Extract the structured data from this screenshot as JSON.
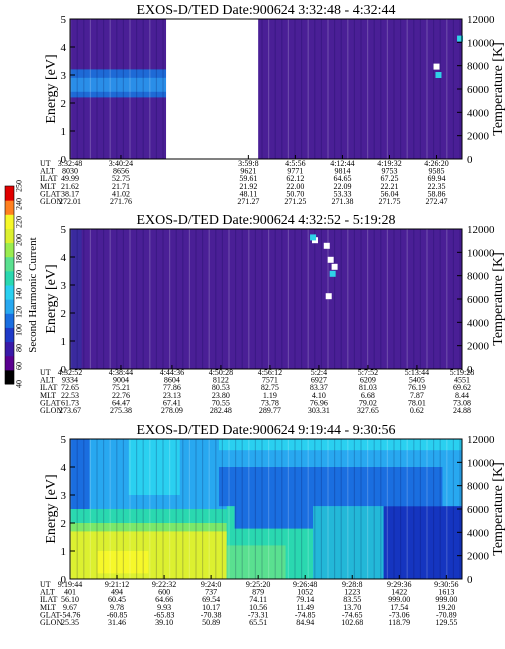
{
  "chart_data": [
    {
      "type": "heatmap",
      "title": "EXOS-D/TED   Date:900624  3:32:48 - 4:32:44",
      "ylabel": "Energy [eV]",
      "y2label": "Temperature [K]",
      "ylim": [
        0,
        5
      ],
      "y2lim": [
        0,
        12000
      ],
      "yticks": [
        "0",
        "1",
        "2",
        "3",
        "4",
        "5"
      ],
      "y2ticks": [
        "0",
        "2000",
        "4000",
        "6000",
        "8000",
        "10000",
        "12000"
      ],
      "background": "#4a1f96",
      "data_gap": [
        0.245,
        0.48
      ],
      "regions": [
        {
          "x": [
            0.0,
            0.245
          ],
          "y": [
            2.2,
            3.2
          ],
          "color": "#1e6ad6"
        },
        {
          "x": [
            0.0,
            0.245
          ],
          "y": [
            2.4,
            2.9
          ],
          "color": "#2a8ee8"
        }
      ],
      "spots": [
        {
          "x": 0.935,
          "y": 3.3,
          "color": "#ffffff"
        },
        {
          "x": 0.94,
          "y": 3.0,
          "color": "#2fd2e8"
        },
        {
          "x": 0.995,
          "y": 4.3,
          "color": "#2fd2e8"
        }
      ],
      "ephemeris": {
        "labels": [
          "UT",
          "ALT",
          "ILAT",
          "MLT",
          "GLAT",
          "GLON"
        ],
        "columns": [
          {
            "x": 0.0,
            "values": [
              "3:32:48",
              "8030",
              "49.99",
              "21.62",
              "38.17",
              "272.01"
            ]
          },
          {
            "x": 0.13,
            "values": [
              "3:40:24",
              "8656",
              "52.75",
              "21.71",
              "41.02",
              "271.76"
            ]
          },
          {
            "x": 0.455,
            "values": [
              "3:59:8",
              "9621",
              "59.61",
              "21.92",
              "48.11",
              "271.27"
            ]
          },
          {
            "x": 0.575,
            "values": [
              "4:5:56",
              "9771",
              "62.12",
              "22.00",
              "50.70",
              "271.25"
            ]
          },
          {
            "x": 0.695,
            "values": [
              "4:12:44",
              "9814",
              "64.65",
              "22.09",
              "53.33",
              "271.38"
            ]
          },
          {
            "x": 0.815,
            "values": [
              "4:19:32",
              "9753",
              "67.25",
              "22.21",
              "56.04",
              "271.75"
            ]
          },
          {
            "x": 0.935,
            "values": [
              "4:26:20",
              "9585",
              "69.94",
              "22.35",
              "58.86",
              "272.47"
            ]
          }
        ]
      }
    },
    {
      "type": "heatmap",
      "title": "EXOS-D/TED   Date:900624  4:32:52 - 5:19:28",
      "ylabel": "Energy [eV]",
      "y2label": "Temperature [K]",
      "ylim": [
        0,
        5
      ],
      "y2lim": [
        0,
        12000
      ],
      "yticks": [
        "0",
        "1",
        "2",
        "3",
        "4",
        "5"
      ],
      "y2ticks": [
        "0",
        "2000",
        "4000",
        "6000",
        "8000",
        "10000",
        "12000"
      ],
      "background": "#4a1f96",
      "data_gap": [],
      "regions": [
        {
          "x": [
            0.0,
            0.03
          ],
          "y": [
            0.0,
            5.0
          ],
          "color": "#3a2a9e"
        }
      ],
      "spots": [
        {
          "x": 0.625,
          "y": 4.6,
          "color": "#ffffff"
        },
        {
          "x": 0.655,
          "y": 4.4,
          "color": "#ffffff"
        },
        {
          "x": 0.665,
          "y": 3.9,
          "color": "#ffffff"
        },
        {
          "x": 0.675,
          "y": 3.65,
          "color": "#ffffff"
        },
        {
          "x": 0.66,
          "y": 2.6,
          "color": "#ffffff"
        },
        {
          "x": 0.62,
          "y": 4.7,
          "color": "#2fd2e8"
        },
        {
          "x": 0.67,
          "y": 3.4,
          "color": "#2fd2e8"
        }
      ],
      "ephemeris": {
        "labels": [
          "UT",
          "ALT",
          "ILAT",
          "MLT",
          "GLAT",
          "GLON"
        ],
        "columns": [
          {
            "x": 0.0,
            "values": [
              "4:32:52",
              "9334",
              "72.65",
              "22.53",
              "61.73",
              "273.67"
            ]
          },
          {
            "x": 0.13,
            "values": [
              "4:38:44",
              "9004",
              "75.21",
              "22.76",
              "64.47",
              "275.38"
            ]
          },
          {
            "x": 0.26,
            "values": [
              "4:44:36",
              "8604",
              "77.86",
              "23.13",
              "67.41",
              "278.09"
            ]
          },
          {
            "x": 0.385,
            "values": [
              "4:50:28",
              "8122",
              "80.53",
              "23.80",
              "70.55",
              "282.48"
            ]
          },
          {
            "x": 0.51,
            "values": [
              "4:56:12",
              "7571",
              "82.75",
              "1.19",
              "73.78",
              "289.77"
            ]
          },
          {
            "x": 0.635,
            "values": [
              "5:2:4",
              "6927",
              "83.37",
              "4.10",
              "76.96",
              "303.31"
            ]
          },
          {
            "x": 0.76,
            "values": [
              "5:7:52",
              "6209",
              "81.03",
              "6.68",
              "79.02",
              "327.65"
            ]
          },
          {
            "x": 0.885,
            "values": [
              "5:13:44",
              "5405",
              "76.19",
              "7.87",
              "78.01",
              "0.62"
            ]
          },
          {
            "x": 1.0,
            "values": [
              "5:19:28",
              "4551",
              "69.62",
              "8.44",
              "73.08",
              "24.88"
            ]
          }
        ]
      }
    },
    {
      "type": "heatmap",
      "title": "EXOS-D/TED   Date:900624  9:19:44 - 9:30:56",
      "ylabel": "Energy [eV]",
      "y2label": "Temperature [K]",
      "ylim": [
        0,
        5
      ],
      "y2lim": [
        0,
        12000
      ],
      "yticks": [
        "0",
        "1",
        "2",
        "3",
        "4",
        "5"
      ],
      "y2ticks": [
        "0",
        "2000",
        "4000",
        "6000",
        "8000",
        "10000",
        "12000"
      ],
      "background": "#28a8f0",
      "data_gap": [],
      "regions": [
        {
          "x": [
            0.0,
            0.05
          ],
          "y": [
            2.5,
            5.0
          ],
          "color": "#1a6ee0"
        },
        {
          "x": [
            0.15,
            0.28
          ],
          "y": [
            3.0,
            5.0
          ],
          "color": "#2ad0f0"
        },
        {
          "x": [
            0.38,
            1.0
          ],
          "y": [
            4.6,
            5.0
          ],
          "color": "#2ad0f0"
        },
        {
          "x": [
            0.38,
            0.95
          ],
          "y": [
            2.6,
            4.0
          ],
          "color": "#1a6ee0"
        },
        {
          "x": [
            0.0,
            0.4
          ],
          "y": [
            2.0,
            2.5
          ],
          "color": "#2ad8b0"
        },
        {
          "x": [
            0.0,
            0.4
          ],
          "y": [
            1.3,
            2.0
          ],
          "color": "#7ae86a"
        },
        {
          "x": [
            0.0,
            0.4
          ],
          "y": [
            0.0,
            1.7
          ],
          "color": "#dcf030"
        },
        {
          "x": [
            0.07,
            0.2
          ],
          "y": [
            0.2,
            1.0
          ],
          "color": "#f6f82a"
        },
        {
          "x": [
            0.4,
            0.62
          ],
          "y": [
            0.0,
            2.6
          ],
          "color": "#2ad8b0"
        },
        {
          "x": [
            0.4,
            0.55
          ],
          "y": [
            0.0,
            1.2
          ],
          "color": "#5ae090"
        },
        {
          "x": [
            0.62,
            0.8
          ],
          "y": [
            0.0,
            2.6
          ],
          "color": "#23b8d8"
        },
        {
          "x": [
            0.8,
            1.0
          ],
          "y": [
            0.0,
            2.6
          ],
          "color": "#1535c0"
        },
        {
          "x": [
            0.42,
            0.62
          ],
          "y": [
            1.8,
            3.2
          ],
          "color": "#1a6ee0"
        }
      ],
      "spots": [],
      "ephemeris": {
        "labels": [
          "UT",
          "ALT",
          "ILAT",
          "MLT",
          "GLAT",
          "GLON"
        ],
        "columns": [
          {
            "x": 0.0,
            "values": [
              "9:19:44",
              "401",
              "56.10",
              "9.67",
              "-54.76",
              "25.35"
            ]
          },
          {
            "x": 0.12,
            "values": [
              "9:21:12",
              "494",
              "60.45",
              "9.78",
              "-60.85",
              "31.46"
            ]
          },
          {
            "x": 0.24,
            "values": [
              "9:22:32",
              "600",
              "64.66",
              "9.93",
              "-65.83",
              "39.10"
            ]
          },
          {
            "x": 0.36,
            "values": [
              "9:24:0",
              "737",
              "69.54",
              "10.17",
              "-70.38",
              "50.89"
            ]
          },
          {
            "x": 0.48,
            "values": [
              "9:25:20",
              "879",
              "74.11",
              "10.56",
              "-73.31",
              "65.51"
            ]
          },
          {
            "x": 0.6,
            "values": [
              "9:26:48",
              "1052",
              "79.14",
              "11.49",
              "-74.85",
              "84.94"
            ]
          },
          {
            "x": 0.72,
            "values": [
              "9:28:8",
              "1223",
              "83.55",
              "13.70",
              "-74.65",
              "102.68"
            ]
          },
          {
            "x": 0.84,
            "values": [
              "9:29:36",
              "1422",
              "999.00",
              "17.54",
              "-73.06",
              "118.79"
            ]
          },
          {
            "x": 0.96,
            "values": [
              "9:30:56",
              "1613",
              "999.00",
              "19.20",
              "-70.89",
              "129.55"
            ]
          }
        ]
      }
    }
  ],
  "colorbar": {
    "label": "Second Harmonic Current",
    "ticks": [
      "40",
      "60",
      "80",
      "100",
      "120",
      "140",
      "160",
      "180",
      "200",
      "220",
      "240",
      "250"
    ],
    "colors": [
      "#000000",
      "#5a0090",
      "#3a1aa8",
      "#1f3ac8",
      "#1a6ee0",
      "#28a8f0",
      "#2ad0f0",
      "#2ad8b0",
      "#5ae090",
      "#9aec50",
      "#dcf030",
      "#f6f82a",
      "#ff8020",
      "#e00000"
    ]
  }
}
